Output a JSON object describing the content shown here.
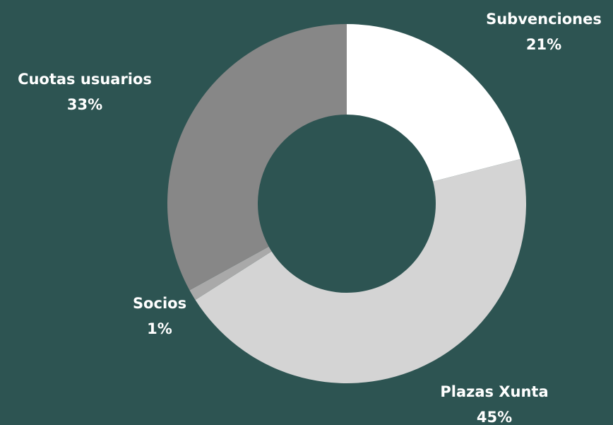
{
  "chart_data": {
    "type": "donut",
    "categories": [
      "Subvenciones",
      "Plazas Xunta",
      "Socios",
      "Cuotas usuarios"
    ],
    "values": [
      21,
      45,
      1,
      33
    ],
    "value_labels": [
      "21%",
      "45%",
      "1%",
      "33%"
    ],
    "colors": [
      "#ffffff",
      "#d4d4d4",
      "#a9a9a9",
      "#878787"
    ]
  }
}
